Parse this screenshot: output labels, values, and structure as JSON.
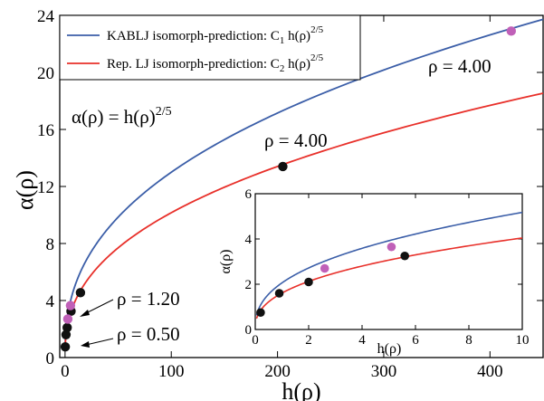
{
  "chart_data": [
    {
      "type": "line",
      "xlabel": "h(ρ)",
      "ylabel": "α(ρ)",
      "xlim": [
        -5,
        450
      ],
      "ylim": [
        0,
        24
      ],
      "xticks": [
        0,
        100,
        200,
        300,
        400
      ],
      "yticks": [
        0,
        4,
        8,
        12,
        16,
        20,
        24
      ],
      "legend_position": "top-left",
      "series": [
        {
          "name": "KABLJ isomorph-prediction: C",
          "name_sub": "1",
          "name_tail": " h(ρ)",
          "name_sup": "2/5",
          "color": "#3b5ea8",
          "curve": {
            "coefficient": 2.06,
            "exponent": 0.4
          }
        },
        {
          "name": "Rep. LJ isomorph-prediction: C",
          "name_sub": "2",
          "name_tail": " h(ρ)",
          "name_sup": "2/5",
          "color": "#e8302a",
          "curve": {
            "coefficient": 1.61,
            "exponent": 0.4
          }
        }
      ],
      "points": {
        "black": {
          "color": "#111111",
          "x": [
            0.2,
            0.9,
            2.0,
            5.6,
            14.5,
            205.0
          ],
          "y": [
            0.75,
            1.6,
            2.1,
            3.25,
            4.55,
            13.4
          ]
        },
        "magenta": {
          "color": "#c060b8",
          "x": [
            2.6,
            5.1,
            420.0
          ],
          "y": [
            2.7,
            3.65,
            22.9
          ]
        }
      },
      "annotations": [
        {
          "text": "α(ρ) = h(ρ)",
          "sup": "2/5"
        },
        {
          "text": "ρ = 4.00"
        },
        {
          "text": "ρ = 4.00"
        },
        {
          "text": "ρ = 1.20"
        },
        {
          "text": "ρ = 0.50"
        }
      ]
    },
    {
      "type": "line",
      "xlabel": "h(ρ)",
      "ylabel": "α(ρ)",
      "xlim": [
        0,
        10
      ],
      "ylim": [
        0,
        6
      ],
      "xticks": [
        0,
        2,
        4,
        6,
        8,
        10
      ],
      "yticks": [
        0,
        2,
        4,
        6
      ],
      "points": {
        "black": {
          "x": [
            0.2,
            0.9,
            2.0,
            5.6
          ],
          "y": [
            0.75,
            1.6,
            2.1,
            3.25
          ]
        },
        "magenta": {
          "x": [
            2.6,
            5.1
          ],
          "y": [
            2.7,
            3.65
          ]
        }
      }
    }
  ]
}
